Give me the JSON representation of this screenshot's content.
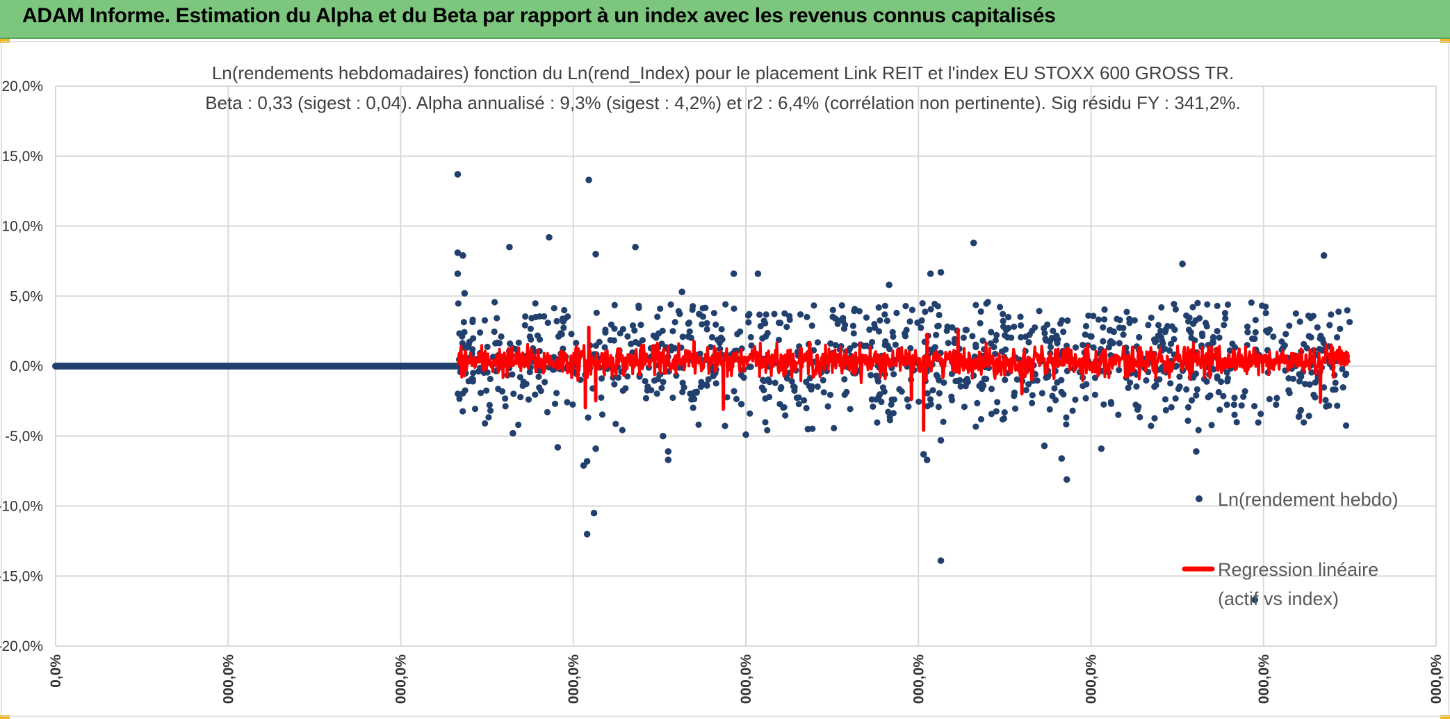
{
  "banner": {
    "title": "ADAM Informe. Estimation du Alpha et du Beta par rapport à un index avec les revenus connus capitalisés"
  },
  "colors": {
    "banner_bg": "#7dc67e",
    "scatter": "#22406e",
    "regression": "#ff0000",
    "grid": "#d9d9d9",
    "corner_accent": "#f2b51a"
  },
  "chart_data": {
    "type": "scatter",
    "title_line1": "Ln(rendements hebdomadaires) fonction du Ln(rend_Index) pour le placement Link REIT et l'index EU STOXX 600 GROSS TR.",
    "title_line2": "Beta : 0,33 (sigest : 0,04). Alpha annualisé : 9,3% (sigest : 4,2%) et r2 : 6,4% (corrélation non pertinente). Sig résidu FY : 341,2%.",
    "y_ticks": [
      "20,0%",
      "15,0%",
      "10,0%",
      "5,0%",
      "0,0%",
      "-5,0%",
      "-10,0%",
      "-15,0%",
      "-20,0%"
    ],
    "x_ticks": [
      "0,0%",
      "000,0%",
      "000,0%",
      "000,0%",
      "000,0%",
      "000,0%",
      "000,0%",
      "000,0%",
      "000,0%"
    ],
    "ylim": [
      -20,
      20
    ],
    "xlim": [
      0,
      8
    ],
    "grid": true,
    "legend_position": "right",
    "series": [
      {
        "name": "Ln(rendement hebdo)",
        "style": "markers",
        "zero_segment": {
          "x_start": 0,
          "x_end": 2.33,
          "y": 0
        },
        "x_start": 2.33,
        "x_end": 7.5,
        "count": 1100,
        "typical_spread": 2.2,
        "notable_points": [
          {
            "x": 2.33,
            "y": 13.7
          },
          {
            "x": 2.33,
            "y": 8.1
          },
          {
            "x": 2.36,
            "y": 7.9
          },
          {
            "x": 2.33,
            "y": 6.6
          },
          {
            "x": 2.37,
            "y": 5.2
          },
          {
            "x": 2.63,
            "y": 8.5
          },
          {
            "x": 2.86,
            "y": 9.2
          },
          {
            "x": 3.09,
            "y": 13.3
          },
          {
            "x": 3.13,
            "y": 8.0
          },
          {
            "x": 3.36,
            "y": 8.5
          },
          {
            "x": 3.08,
            "y": -12.0
          },
          {
            "x": 3.12,
            "y": -10.5
          },
          {
            "x": 3.06,
            "y": -7.1
          },
          {
            "x": 3.08,
            "y": -6.8
          },
          {
            "x": 3.13,
            "y": -5.9
          },
          {
            "x": 2.91,
            "y": -5.8
          },
          {
            "x": 2.65,
            "y": -4.8
          },
          {
            "x": 3.55,
            "y": -6.1
          },
          {
            "x": 3.55,
            "y": -6.7
          },
          {
            "x": 3.52,
            "y": -5.0
          },
          {
            "x": 3.93,
            "y": 6.6
          },
          {
            "x": 3.63,
            "y": 5.3
          },
          {
            "x": 4.07,
            "y": 6.6
          },
          {
            "x": 5.07,
            "y": 6.6
          },
          {
            "x": 5.32,
            "y": 8.8
          },
          {
            "x": 6.53,
            "y": 7.3
          },
          {
            "x": 7.35,
            "y": 7.9
          },
          {
            "x": 5.03,
            "y": -6.3
          },
          {
            "x": 5.05,
            "y": -6.7
          },
          {
            "x": 5.13,
            "y": -13.9
          },
          {
            "x": 5.13,
            "y": -5.3
          },
          {
            "x": 5.73,
            "y": -5.7
          },
          {
            "x": 5.83,
            "y": -6.6
          },
          {
            "x": 5.86,
            "y": -8.1
          },
          {
            "x": 6.06,
            "y": -5.9
          },
          {
            "x": 6.61,
            "y": -6.1
          },
          {
            "x": 6.95,
            "y": -16.7
          },
          {
            "x": 5.13,
            "y": 6.7
          },
          {
            "x": 4.83,
            "y": 5.8
          },
          {
            "x": 4.36,
            "y": -4.5
          },
          {
            "x": 4.0,
            "y": -4.9
          }
        ]
      },
      {
        "name": "Regression linéaire (actif vs index)",
        "style": "line",
        "x_start": 2.33,
        "x_end": 7.5,
        "beta": 0.33,
        "typical_spread": 0.75,
        "notable_points": [
          {
            "x": 3.07,
            "y": -3.0
          },
          {
            "x": 3.09,
            "y": 2.8
          },
          {
            "x": 3.13,
            "y": -2.5
          },
          {
            "x": 3.87,
            "y": -3.1
          },
          {
            "x": 3.7,
            "y": 1.8
          },
          {
            "x": 4.96,
            "y": -2.4
          },
          {
            "x": 5.03,
            "y": -4.6
          },
          {
            "x": 5.05,
            "y": 2.3
          },
          {
            "x": 5.23,
            "y": 2.6
          },
          {
            "x": 5.6,
            "y": -2.0
          },
          {
            "x": 7.33,
            "y": -2.6
          },
          {
            "x": 6.73,
            "y": 1.3
          },
          {
            "x": 3.55,
            "y": 1.4
          },
          {
            "x": 4.37,
            "y": 1.7
          }
        ]
      }
    ],
    "legend": [
      {
        "label": "Ln(rendement hebdo)",
        "marker": "dot"
      },
      {
        "label_line1": "Regression linéaire",
        "label_line2": "(actif vs index)",
        "marker": "line"
      }
    ]
  }
}
